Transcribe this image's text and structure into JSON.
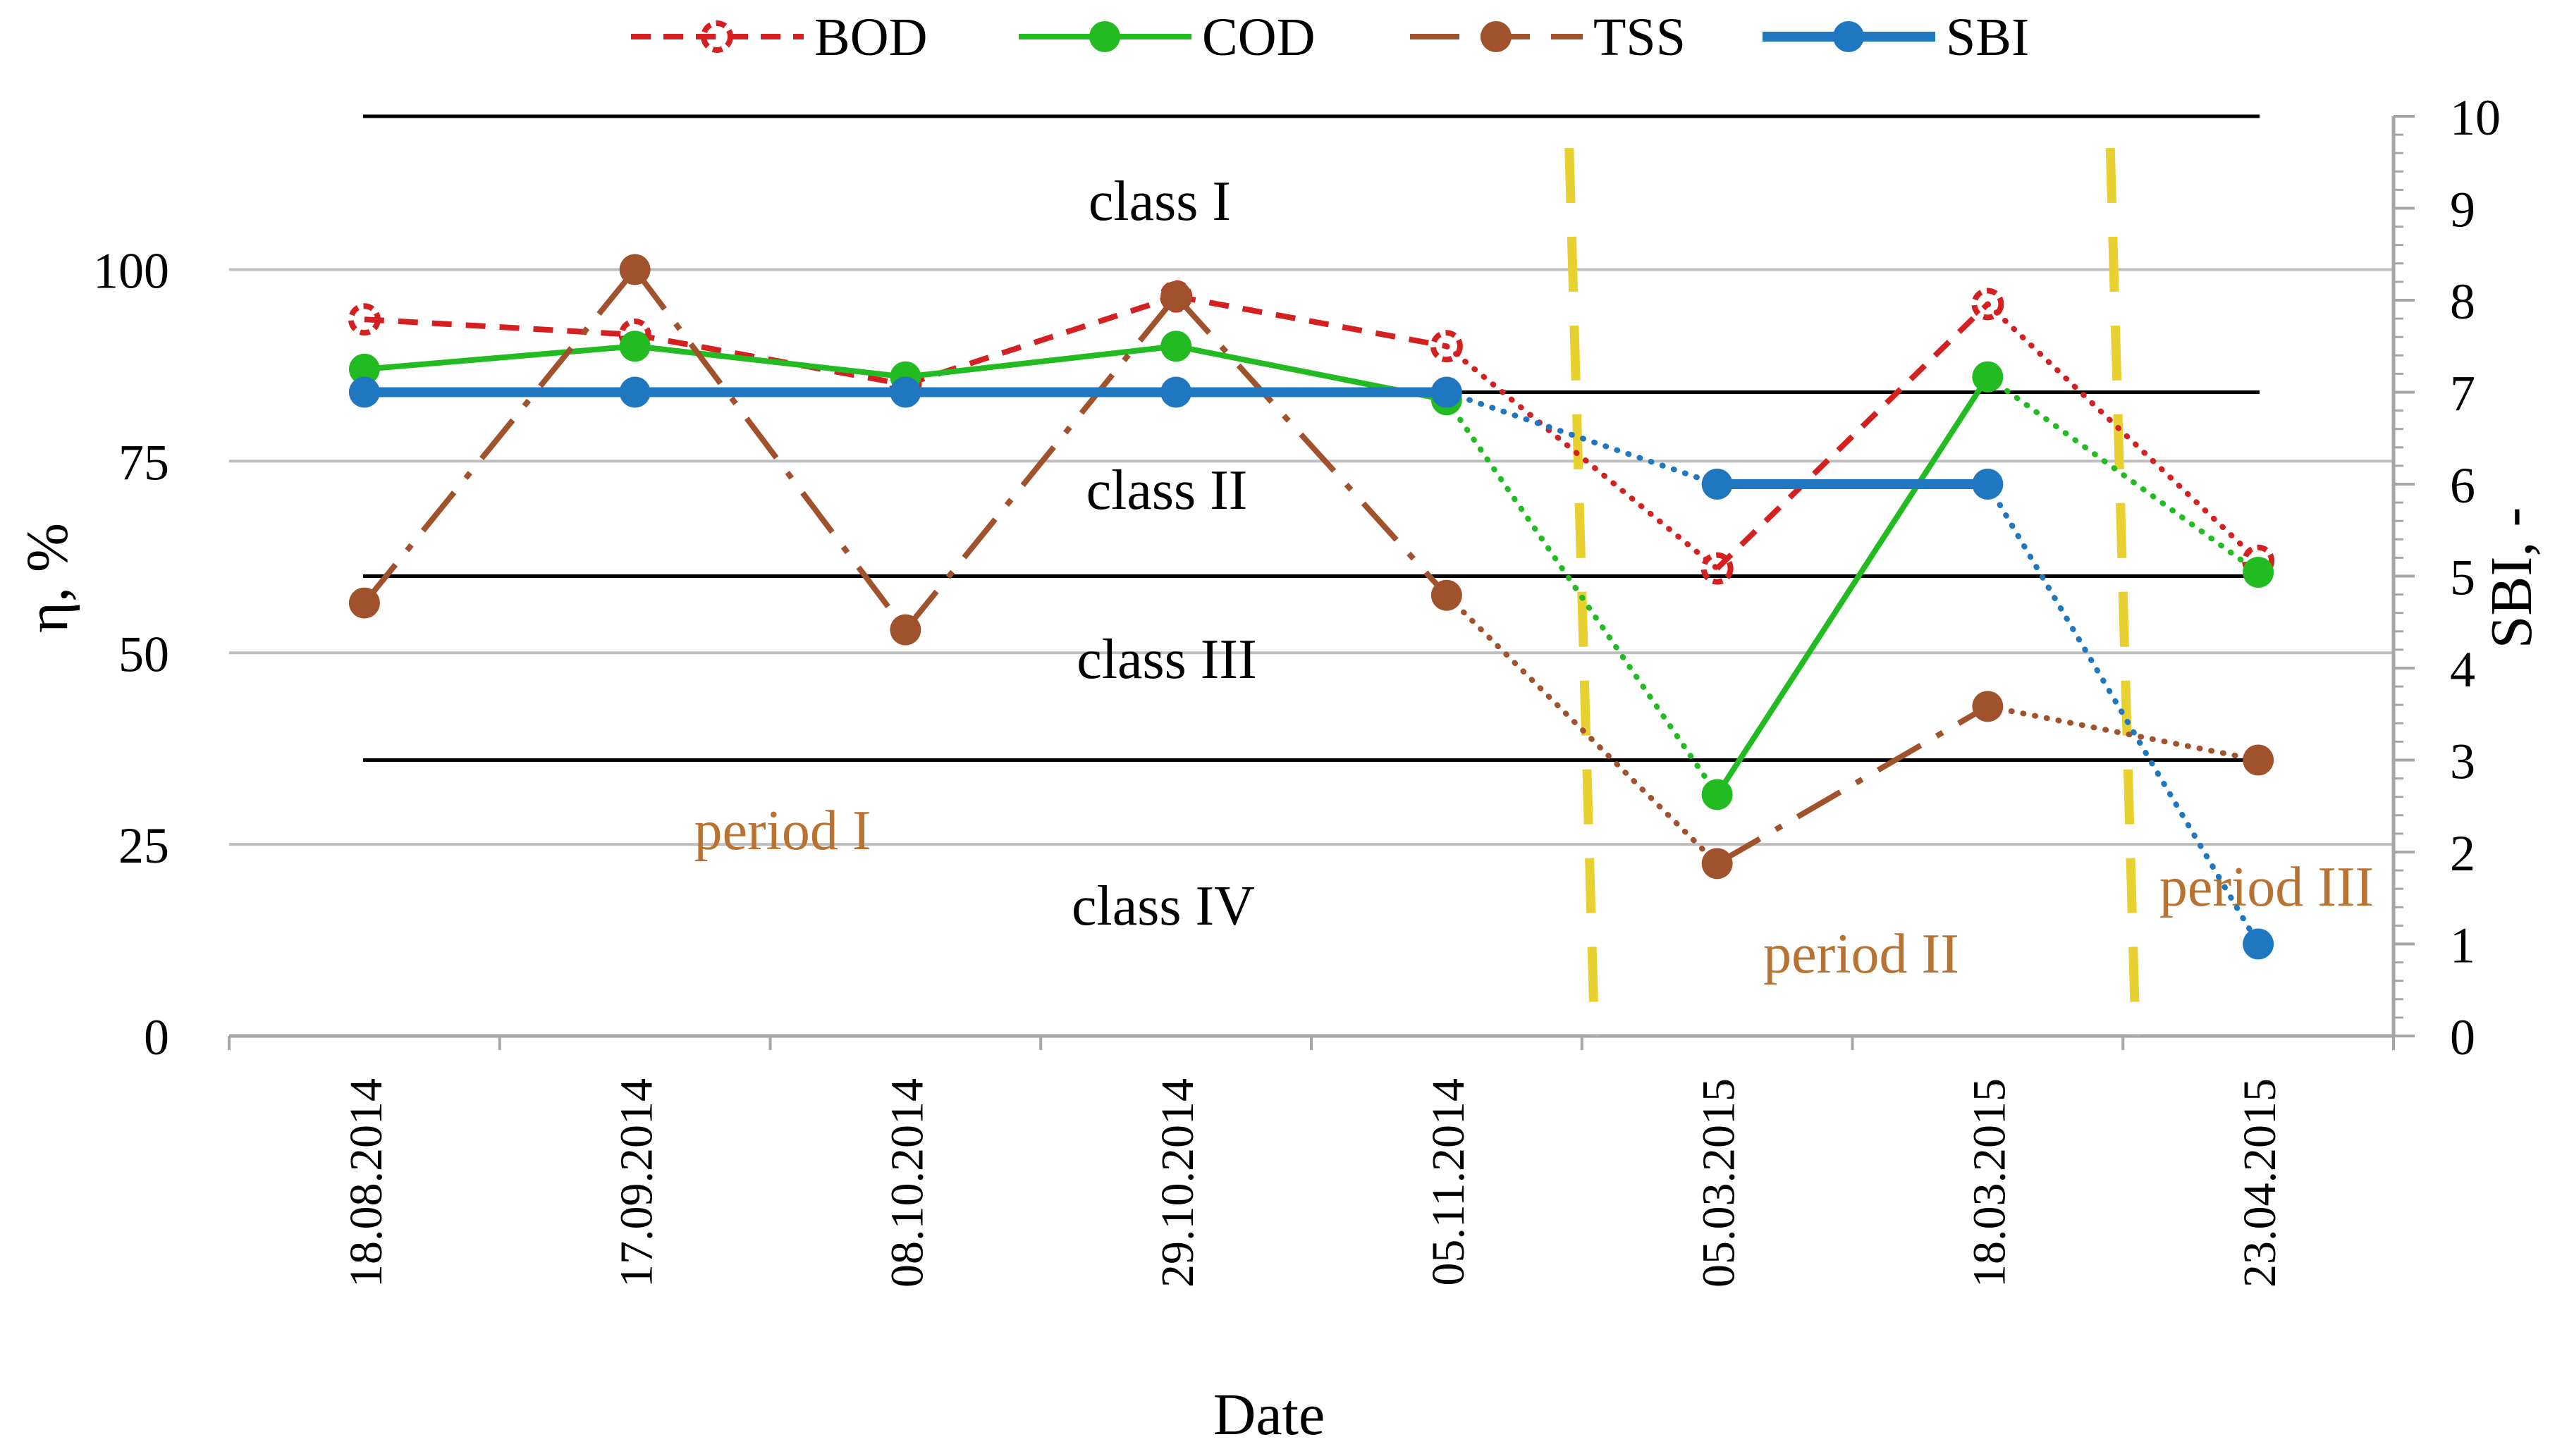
{
  "chart_data": {
    "type": "line",
    "xlabel": "Date",
    "ylabel": "η, %",
    "y2label": "SBI, -",
    "ylim": [
      0,
      120
    ],
    "y2lim": [
      0,
      10
    ],
    "yticks": [
      "0",
      "25",
      "50",
      "75",
      "100"
    ],
    "y2ticks": [
      "0",
      "1",
      "2",
      "3",
      "4",
      "5",
      "6",
      "7",
      "8",
      "9",
      "10"
    ],
    "categories": [
      "18.08.2014",
      "17.09.2014",
      "08.10.2014",
      "29.10.2014",
      "05.11.2014",
      "05.03.2015",
      "18.03.2015",
      "23.04.2015"
    ],
    "legend_position": "top",
    "series": [
      {
        "name": "BOD",
        "axis": "left",
        "color": "#d42020",
        "values": [
          93.5,
          91.5,
          85,
          96.5,
          90,
          61,
          95.5,
          62
        ],
        "dotted_segments": [
          4,
          6
        ]
      },
      {
        "name": "COD",
        "axis": "left",
        "color": "#22bb22",
        "values": [
          87,
          90,
          86,
          90,
          83,
          31.5,
          86,
          60.5
        ],
        "dotted_segments": [
          4,
          6
        ]
      },
      {
        "name": "TSS",
        "axis": "left",
        "color": "#a0522d",
        "values": [
          56.5,
          100,
          53,
          96.5,
          57.5,
          22.5,
          43,
          36
        ],
        "dotted_segments": [
          4,
          6
        ]
      },
      {
        "name": "SBI",
        "axis": "right",
        "color": "#1f77c0",
        "values": [
          7,
          7,
          7,
          7,
          7,
          6,
          6,
          1
        ],
        "dotted_segments": [
          4,
          6
        ]
      }
    ],
    "class_boundaries_sbi": [
      3,
      5,
      7,
      10
    ],
    "classes": [
      "class I",
      "class II",
      "class III",
      "class IV"
    ],
    "periods": [
      "period I",
      "period II",
      "period III"
    ],
    "period_separators_between": [
      [
        4,
        5
      ],
      [
        6,
        7
      ]
    ]
  }
}
